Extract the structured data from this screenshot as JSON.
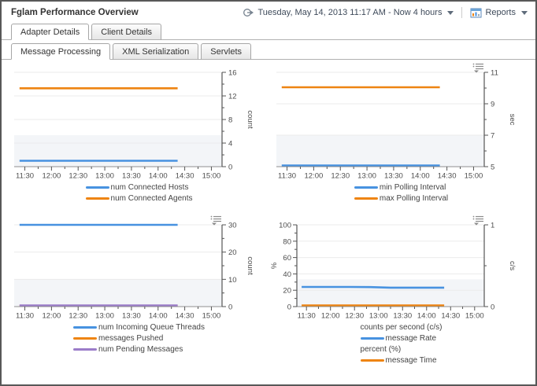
{
  "header": {
    "title": "Fglam Performance Overview",
    "time_range": "Tuesday, May 14, 2013 11:17 AM - Now 4 hours",
    "reports_label": "Reports"
  },
  "tabs_level1": [
    {
      "label": "Adapter Details",
      "active": true
    },
    {
      "label": "Client Details",
      "active": false
    }
  ],
  "tabs_level2": [
    {
      "label": "Message Processing",
      "active": true
    },
    {
      "label": "XML Serialization",
      "active": false
    },
    {
      "label": "Servlets",
      "active": false
    }
  ],
  "colors": {
    "series_blue": "#4792E0",
    "series_orange": "#EE8412",
    "series_purple": "#9B7CC9",
    "band": "#f3f5f8",
    "gridline": "#ebebeb",
    "axis": "#555555",
    "tick_text": "#4d4d4d"
  },
  "chart_data": [
    {
      "id": "connected-hosts-agents",
      "type": "line",
      "title": "",
      "options_icon": false,
      "x_axis": {
        "tick_labels": [
          "11:30",
          "12:00",
          "12:30",
          "13:00",
          "13:30",
          "14:00",
          "14:30",
          "15:00"
        ],
        "tick_minutes": [
          690,
          720,
          750,
          780,
          810,
          840,
          870,
          900
        ],
        "domain_minutes": [
          678,
          912
        ]
      },
      "y_axis": {
        "side": "right",
        "min": 0,
        "max": 16,
        "labels": [
          0,
          4,
          8,
          12,
          16
        ],
        "minor": [
          2,
          6,
          10,
          14
        ],
        "title": "count"
      },
      "y2_axis": null,
      "series": [
        {
          "name": "num Connected Hosts",
          "color": "#4792E0",
          "points": [
            [
              684,
              1
            ],
            [
              862,
              1
            ]
          ]
        },
        {
          "name": "num Connected Agents",
          "color": "#EE8412",
          "points": [
            [
              684,
              13.3
            ],
            [
              862,
              13.3
            ]
          ]
        }
      ],
      "legend": [
        {
          "type": "series",
          "label": "num Connected Hosts",
          "color": "#4792E0"
        },
        {
          "type": "series",
          "label": "num Connected Agents",
          "color": "#EE8412"
        }
      ]
    },
    {
      "id": "polling-interval",
      "type": "line",
      "title": "",
      "options_icon": true,
      "x_axis": {
        "tick_labels": [
          "11:30",
          "12:00",
          "12:30",
          "13:00",
          "13:30",
          "14:00",
          "14:30",
          "15:00"
        ],
        "tick_minutes": [
          690,
          720,
          750,
          780,
          810,
          840,
          870,
          900
        ],
        "domain_minutes": [
          678,
          912
        ]
      },
      "y_axis": {
        "side": "right",
        "min": 5,
        "max": 11,
        "labels": [
          5,
          7,
          9,
          11
        ],
        "minor": [
          6,
          8,
          10
        ],
        "title": "sec"
      },
      "y2_axis": null,
      "series": [
        {
          "name": "min Polling Interval",
          "color": "#4792E0",
          "points": [
            [
              684,
              5.07
            ],
            [
              862,
              5.07
            ]
          ]
        },
        {
          "name": "max Polling Interval",
          "color": "#EE8412",
          "points": [
            [
              684,
              10.05
            ],
            [
              862,
              10.05
            ]
          ]
        }
      ],
      "legend": [
        {
          "type": "series",
          "label": "min Polling Interval",
          "color": "#4792E0"
        },
        {
          "type": "series",
          "label": "max Polling Interval",
          "color": "#EE8412"
        }
      ]
    },
    {
      "id": "queue-messages",
      "type": "line",
      "title": "",
      "options_icon": true,
      "x_axis": {
        "tick_labels": [
          "11:30",
          "12:00",
          "12:30",
          "13:00",
          "13:30",
          "14:00",
          "14:30",
          "15:00"
        ],
        "tick_minutes": [
          690,
          720,
          750,
          780,
          810,
          840,
          870,
          900
        ],
        "domain_minutes": [
          678,
          912
        ]
      },
      "y_axis": {
        "side": "right",
        "min": 0,
        "max": 30,
        "labels": [
          0,
          10,
          20,
          30
        ],
        "minor": [
          5,
          15,
          25
        ],
        "title": "count"
      },
      "y2_axis": null,
      "series": [
        {
          "name": "num Incoming Queue Threads",
          "color": "#4792E0",
          "points": [
            [
              684,
              30
            ],
            [
              862,
              30
            ]
          ]
        },
        {
          "name": "messages Pushed",
          "color": "#EE8412",
          "points": [
            [
              684,
              0.25
            ],
            [
              862,
              0.25
            ]
          ]
        },
        {
          "name": "num Pending Messages",
          "color": "#9B7CC9",
          "width": 2.2,
          "points": [
            [
              684,
              0.45
            ],
            [
              862,
              0.45
            ]
          ]
        }
      ],
      "legend": [
        {
          "type": "series",
          "label": "num Incoming Queue Threads",
          "color": "#4792E0"
        },
        {
          "type": "series",
          "label": "messages Pushed",
          "color": "#EE8412"
        },
        {
          "type": "series",
          "label": "num Pending Messages",
          "color": "#9B7CC9"
        }
      ]
    },
    {
      "id": "message-rate-time",
      "type": "line",
      "title": "",
      "options_icon": true,
      "x_axis": {
        "tick_labels": [
          "11:30",
          "12:00",
          "12:30",
          "13:00",
          "13:30",
          "14:00",
          "14:30",
          "15:00"
        ],
        "tick_minutes": [
          690,
          720,
          750,
          780,
          810,
          840,
          870,
          900
        ],
        "domain_minutes": [
          678,
          912
        ]
      },
      "y_axis": {
        "side": "left",
        "min": 0,
        "max": 100,
        "labels": [
          0,
          20,
          40,
          60,
          80,
          100
        ],
        "minor": [
          10,
          30,
          50,
          70,
          90
        ],
        "title": "%"
      },
      "y2_axis": {
        "min": 0,
        "max": 1,
        "labels": [
          0,
          1
        ],
        "minor": [
          0.5
        ],
        "title": "c/s"
      },
      "series": [
        {
          "name": "message Rate",
          "color": "#4792E0",
          "points": [
            [
              684,
              24
            ],
            [
              745,
              24
            ],
            [
              770,
              23.8
            ],
            [
              795,
              23.2
            ],
            [
              820,
              23.2
            ],
            [
              862,
              23.2
            ]
          ]
        },
        {
          "name": "message Time",
          "color": "#EE8412",
          "points": [
            [
              684,
              1.4
            ],
            [
              862,
              1.4
            ]
          ]
        }
      ],
      "legend": [
        {
          "type": "unit",
          "label": "counts per second (c/s)"
        },
        {
          "type": "series",
          "label": "message Rate",
          "color": "#4792E0"
        },
        {
          "type": "unit",
          "label": "percent (%)"
        },
        {
          "type": "series",
          "label": "message Time",
          "color": "#EE8412"
        }
      ]
    }
  ]
}
